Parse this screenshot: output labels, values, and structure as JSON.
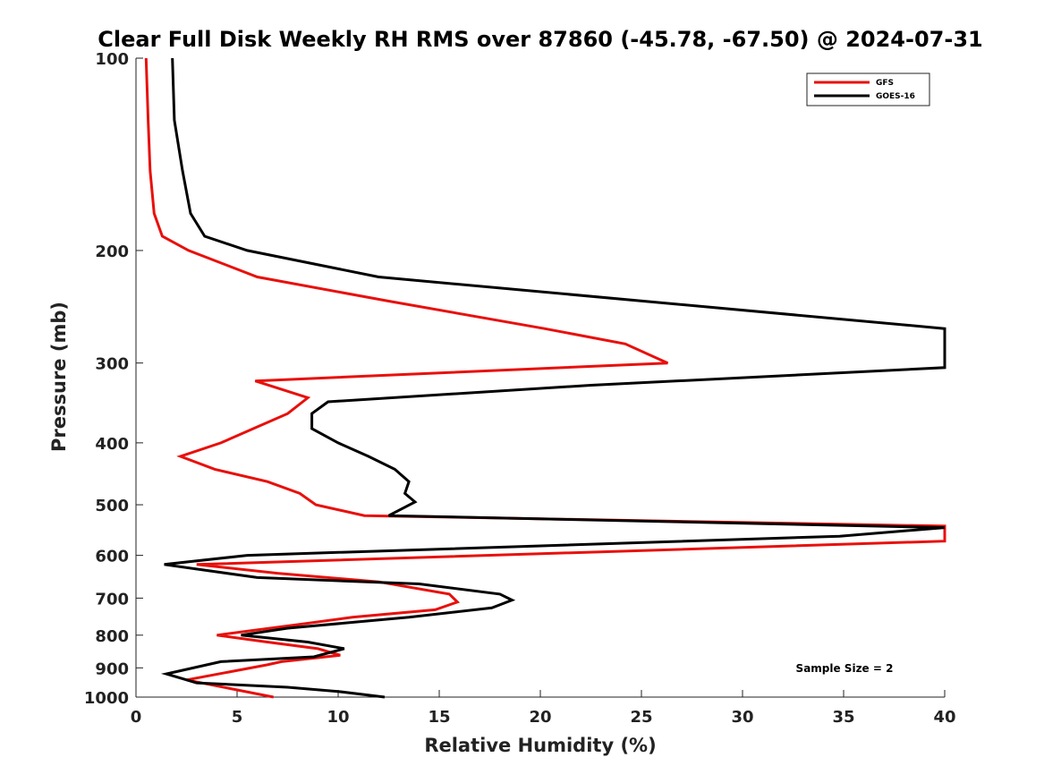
{
  "chart_data": {
    "type": "line",
    "title": "Clear Full Disk Weekly RH RMS over 87860 (-45.78, -67.50) @ 2024-07-31",
    "xlabel": "Relative Humidity (%)",
    "ylabel": "Pressure (mb)",
    "xlim": [
      0,
      40
    ],
    "ylim": [
      100,
      1000
    ],
    "y_scale": "log",
    "y_reversed": true,
    "grid": false,
    "legend_position": "top-right",
    "x_ticks": [
      0,
      5,
      10,
      15,
      20,
      25,
      30,
      35,
      40
    ],
    "y_ticks": [
      100,
      200,
      300,
      400,
      500,
      600,
      700,
      800,
      900,
      1000
    ],
    "annotation": "Sample Size = 2",
    "series": [
      {
        "name": "GFS",
        "color": "#e8100c",
        "points": [
          [
            0.5,
            100
          ],
          [
            0.6,
            125
          ],
          [
            0.7,
            150
          ],
          [
            0.9,
            175
          ],
          [
            1.3,
            190
          ],
          [
            2.6,
            200
          ],
          [
            6.0,
            220
          ],
          [
            12.5,
            240
          ],
          [
            20.2,
            265
          ],
          [
            24.2,
            280
          ],
          [
            26.3,
            300
          ],
          [
            5.9,
            320
          ],
          [
            8.5,
            340
          ],
          [
            7.5,
            360
          ],
          [
            5.8,
            380
          ],
          [
            4.2,
            400
          ],
          [
            2.2,
            420
          ],
          [
            3.9,
            440
          ],
          [
            6.5,
            460
          ],
          [
            8.1,
            480
          ],
          [
            8.9,
            500
          ],
          [
            11.3,
            520
          ],
          [
            40.0,
            540
          ],
          [
            40.0,
            570
          ],
          [
            3.0,
            620
          ],
          [
            7.0,
            640
          ],
          [
            12.0,
            660
          ],
          [
            15.5,
            690
          ],
          [
            15.9,
            710
          ],
          [
            14.8,
            730
          ],
          [
            10.7,
            750
          ],
          [
            8.0,
            770
          ],
          [
            6.0,
            785
          ],
          [
            4.0,
            800
          ],
          [
            6.5,
            820
          ],
          [
            9.0,
            840
          ],
          [
            10.1,
            860
          ],
          [
            7.2,
            880
          ],
          [
            6.5,
            890
          ],
          [
            2.5,
            940
          ],
          [
            6.8,
            1000
          ]
        ]
      },
      {
        "name": "GOES-16",
        "color": "#000000",
        "points": [
          [
            1.8,
            100
          ],
          [
            1.9,
            125
          ],
          [
            2.3,
            150
          ],
          [
            2.7,
            175
          ],
          [
            3.4,
            190
          ],
          [
            5.5,
            200
          ],
          [
            12.0,
            220
          ],
          [
            40.0,
            265
          ],
          [
            40.0,
            305
          ],
          [
            22.5,
            325
          ],
          [
            9.5,
            345
          ],
          [
            8.7,
            360
          ],
          [
            8.7,
            380
          ],
          [
            10.0,
            400
          ],
          [
            11.5,
            420
          ],
          [
            12.8,
            440
          ],
          [
            13.5,
            460
          ],
          [
            13.3,
            480
          ],
          [
            13.8,
            495
          ],
          [
            12.5,
            520
          ],
          [
            40.0,
            543
          ],
          [
            34.8,
            560
          ],
          [
            5.5,
            600
          ],
          [
            1.4,
            620
          ],
          [
            6.0,
            650
          ],
          [
            14.0,
            665
          ],
          [
            18.0,
            690
          ],
          [
            18.6,
            705
          ],
          [
            17.6,
            725
          ],
          [
            13.5,
            750
          ],
          [
            7.5,
            780
          ],
          [
            5.2,
            800
          ],
          [
            8.5,
            820
          ],
          [
            10.3,
            840
          ],
          [
            8.8,
            865
          ],
          [
            4.2,
            880
          ],
          [
            1.5,
            920
          ],
          [
            3.0,
            950
          ],
          [
            7.5,
            965
          ],
          [
            10.0,
            980
          ],
          [
            12.3,
            1000
          ]
        ]
      }
    ]
  }
}
